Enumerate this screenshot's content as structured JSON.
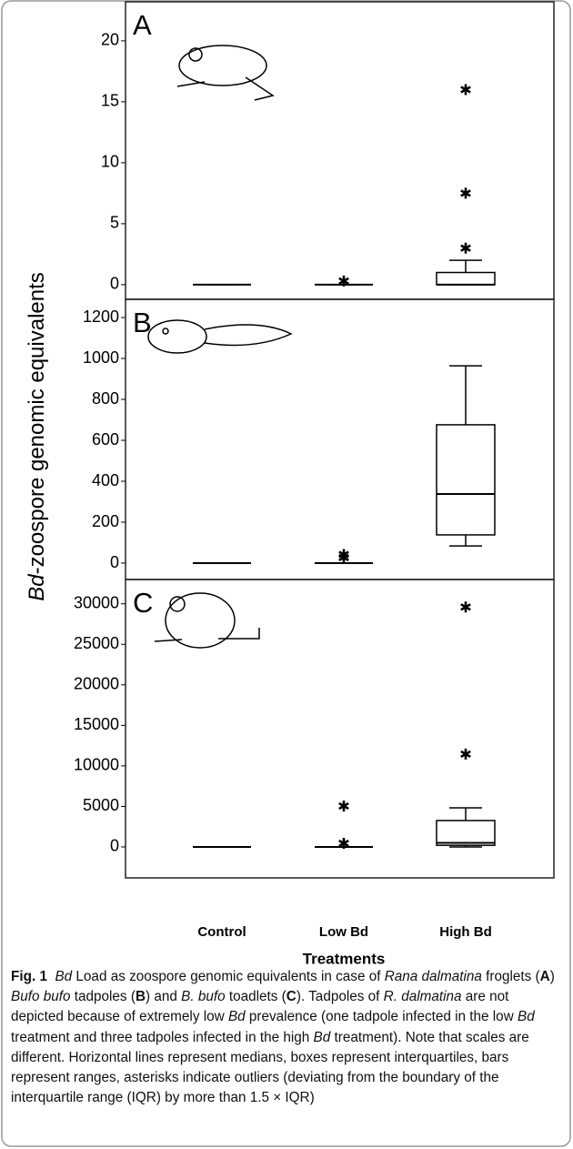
{
  "chart_data": [
    {
      "type": "box",
      "label": "A",
      "ylim": [
        -1.2,
        23.2
      ],
      "yticks": [
        0,
        5,
        10,
        15,
        20
      ],
      "boxes": [
        {
          "median": 0,
          "q1": 0,
          "q3": 0,
          "whislo": 0,
          "whishi": 0,
          "outliers": []
        },
        {
          "median": 0,
          "q1": 0,
          "q3": 0,
          "whislo": 0,
          "whishi": 0,
          "outliers": [
            0.3
          ]
        },
        {
          "median": 0,
          "q1": 0,
          "q3": 1,
          "whislo": 0,
          "whishi": 2,
          "outliers": [
            3,
            7.5,
            16
          ]
        }
      ]
    },
    {
      "type": "box",
      "label": "B",
      "ylim": [
        -80,
        1289
      ],
      "yticks": [
        0,
        200,
        400,
        600,
        800,
        1000,
        1200
      ],
      "ylabel": [
        {
          "text": "Bd",
          "style": "italic"
        },
        {
          "text": "-zoospore genomic equivalents",
          "style": "normal"
        }
      ],
      "boxes": [
        {
          "median": 0,
          "q1": 0,
          "q3": 0,
          "whislo": 0,
          "whishi": 0,
          "outliers": []
        },
        {
          "median": 0,
          "q1": 0,
          "q3": 0,
          "whislo": 0,
          "whishi": 0,
          "outliers": [
            27,
            42
          ]
        },
        {
          "median": 338,
          "q1": 138,
          "q3": 676,
          "whislo": 84,
          "whishi": 964,
          "outliers": []
        }
      ]
    },
    {
      "type": "box",
      "label": "C",
      "ylim": [
        -3820,
        33000
      ],
      "yticks": [
        0,
        5000,
        10000,
        15000,
        20000,
        25000,
        30000
      ],
      "categories": [
        "Control",
        "Low Bd",
        "High Bd"
      ],
      "xlabel": "Treatments",
      "boxes": [
        {
          "median": 0,
          "q1": 0,
          "q3": 0,
          "whislo": 0,
          "whishi": 0,
          "outliers": []
        },
        {
          "median": 0,
          "q1": 0,
          "q3": 0,
          "whislo": 0,
          "whishi": 0,
          "outliers": [
            450,
            5050
          ]
        },
        {
          "median": 500,
          "q1": 200,
          "q3": 3260,
          "whislo": 0,
          "whishi": 4830,
          "outliers": [
            11460,
            29600
          ]
        }
      ]
    }
  ],
  "caption": [
    {
      "text": "Fig. 1",
      "style": "bold"
    },
    {
      "text": "  ",
      "style": "normal"
    },
    {
      "text": "Bd",
      "style": "italic"
    },
    {
      "text": " Load as zoospore genomic equivalents in case of ",
      "style": "normal"
    },
    {
      "text": "Rana dalmatina",
      "style": "italic"
    },
    {
      "text": " froglets (",
      "style": "normal"
    },
    {
      "text": "A",
      "style": "bold"
    },
    {
      "text": ") ",
      "style": "normal"
    },
    {
      "text": "Bufo bufo",
      "style": "italic"
    },
    {
      "text": " tadpoles (",
      "style": "normal"
    },
    {
      "text": "B",
      "style": "bold"
    },
    {
      "text": ") and ",
      "style": "normal"
    },
    {
      "text": "B. bufo",
      "style": "italic"
    },
    {
      "text": " toadlets (",
      "style": "normal"
    },
    {
      "text": "C",
      "style": "bold"
    },
    {
      "text": "). Tadpoles of ",
      "style": "normal"
    },
    {
      "text": "R. dalmatina",
      "style": "italic"
    },
    {
      "text": " are not depicted because of extremely low ",
      "style": "normal"
    },
    {
      "text": "Bd",
      "style": "italic"
    },
    {
      "text": " prevalence (one tadpole infected in the low ",
      "style": "normal"
    },
    {
      "text": "Bd",
      "style": "italic"
    },
    {
      "text": " treatment and three tadpoles infected in the high ",
      "style": "normal"
    },
    {
      "text": "Bd",
      "style": "italic"
    },
    {
      "text": " treatment). Note that scales are different. Horizontal lines represent medians, boxes represent interquartiles, bars represent ranges, asterisks indicate outliers (deviating from the boundary of the interquartile range (IQR) by more than 1.5 × IQR)",
      "style": "normal"
    }
  ]
}
